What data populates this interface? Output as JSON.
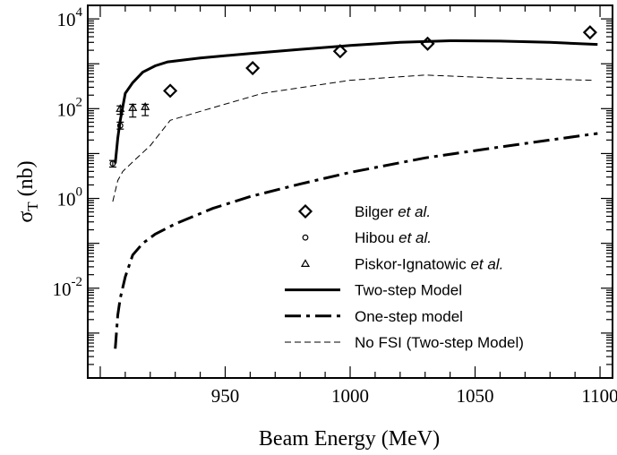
{
  "chart_data": {
    "type": "line",
    "xlabel": "Beam Energy (MeV)",
    "ylabel": {
      "main": "σ",
      "sub": "T",
      "unit": " (nb)"
    },
    "xlim": [
      895,
      1105
    ],
    "ylim": [
      0.0001,
      20000
    ],
    "yscale": "log",
    "grid": false,
    "legend_position": "lower-right",
    "x_ticks": [
      {
        "value": 950,
        "label": "950"
      },
      {
        "value": 1000,
        "label": "1000"
      },
      {
        "value": 1050,
        "label": "1050"
      },
      {
        "value": 1100,
        "label": "1100"
      }
    ],
    "y_ticks": [
      {
        "value": 10000,
        "base": "10",
        "exp": "4"
      },
      {
        "value": 100,
        "base": "10",
        "exp": "2"
      },
      {
        "value": 1,
        "base": "10",
        "exp": "0"
      },
      {
        "value": 0.01,
        "base": "10",
        "exp": "-2"
      }
    ],
    "series": [
      {
        "name": "Two-step Model",
        "kind": "line",
        "style": "solid",
        "color": "#000000",
        "points": [
          [
            906,
            6
          ],
          [
            907,
            22
          ],
          [
            908,
            55
          ],
          [
            910,
            220
          ],
          [
            913,
            380
          ],
          [
            917,
            650
          ],
          [
            922,
            900
          ],
          [
            927,
            1100
          ],
          [
            940,
            1350
          ],
          [
            960,
            1700
          ],
          [
            980,
            2100
          ],
          [
            1000,
            2550
          ],
          [
            1020,
            3000
          ],
          [
            1040,
            3250
          ],
          [
            1060,
            3200
          ],
          [
            1080,
            3000
          ],
          [
            1099,
            2700
          ]
        ]
      },
      {
        "name": "One-step model",
        "kind": "line",
        "style": "dashdot",
        "color": "#000000",
        "points": [
          [
            906,
            0.00045
          ],
          [
            907,
            0.0025
          ],
          [
            908,
            0.006
          ],
          [
            910,
            0.018
          ],
          [
            913,
            0.055
          ],
          [
            917,
            0.1
          ],
          [
            922,
            0.16
          ],
          [
            930,
            0.27
          ],
          [
            945,
            0.6
          ],
          [
            960,
            1.1
          ],
          [
            980,
            2.1
          ],
          [
            1000,
            3.8
          ],
          [
            1030,
            8
          ],
          [
            1060,
            14
          ],
          [
            1080,
            20
          ],
          [
            1099,
            28
          ]
        ]
      },
      {
        "name": "No FSI (Two-step Model)",
        "kind": "line",
        "style": "dashed",
        "color": "#000000",
        "points": [
          [
            905,
            0.85
          ],
          [
            907,
            2.5
          ],
          [
            909,
            4
          ],
          [
            913,
            6.5
          ],
          [
            920,
            15
          ],
          [
            928,
            55
          ],
          [
            945,
            105
          ],
          [
            965,
            220
          ],
          [
            1000,
            430
          ],
          [
            1030,
            560
          ],
          [
            1060,
            480
          ],
          [
            1097,
            430
          ]
        ]
      },
      {
        "name": "Bilger et al.",
        "name_main": "Bilger ",
        "name_italic": "et al.",
        "kind": "scatter",
        "marker": "diamond",
        "color": "#000000",
        "points": [
          [
            928,
            250
          ],
          [
            961,
            800
          ],
          [
            996,
            1900
          ],
          [
            1031,
            2800
          ],
          [
            1096,
            5000
          ]
        ]
      },
      {
        "name": "Hibou et al.",
        "name_main": "Hibou ",
        "name_italic": "et al.",
        "kind": "scatter",
        "marker": "circle",
        "color": "#000000",
        "points": [
          [
            905,
            6
          ],
          [
            908,
            42
          ]
        ],
        "errors": [
          [
            5,
            7
          ],
          [
            35,
            50
          ]
        ]
      },
      {
        "name": "Piskor-Ignatowic et al.",
        "name_main": "Piskor-Ignatowic ",
        "name_italic": "et al.",
        "kind": "scatter",
        "marker": "triangle",
        "color": "#000000",
        "points": [
          [
            908,
            100
          ],
          [
            913,
            105
          ],
          [
            918,
            110
          ]
        ],
        "errors": [
          [
            75,
            115
          ],
          [
            65,
            125
          ],
          [
            70,
            125
          ]
        ]
      }
    ]
  }
}
